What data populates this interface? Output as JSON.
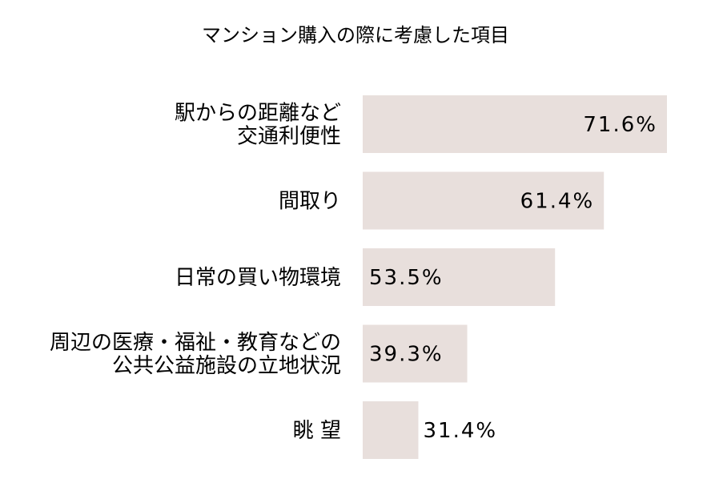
{
  "chart_data": {
    "type": "bar",
    "orientation": "horizontal",
    "title": "マンション購入の際に考慮した項目",
    "categories": [
      [
        "駅からの距離など",
        "交通利便性"
      ],
      [
        "間取り"
      ],
      [
        "日常の買い物環境"
      ],
      [
        "周辺の医療・福祉・教育などの",
        "公共公益施設の立地状況"
      ],
      [
        "眺 望"
      ]
    ],
    "values": [
      71.6,
      61.4,
      53.5,
      39.3,
      31.4
    ],
    "value_labels": [
      "71.6%",
      "61.4%",
      "53.5%",
      "39.3%",
      "31.4%"
    ],
    "xlim": [
      22.4,
      71.6
    ],
    "bar_color": "#e8dfdc",
    "grid": false,
    "legend": "none"
  }
}
